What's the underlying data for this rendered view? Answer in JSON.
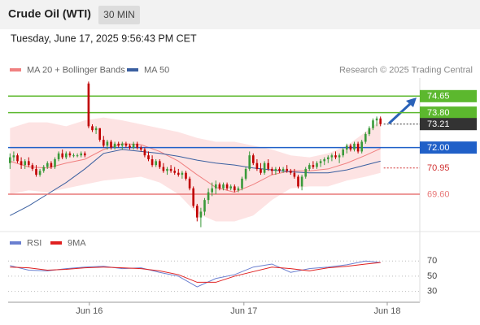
{
  "header": {
    "title": "Crude Oil (WTI)",
    "timeframe": "30 MIN",
    "timestamp": "Tuesday, June 17, 2025 9:56:43 PM CET"
  },
  "chart_data": [
    {
      "type": "candlestick",
      "source": "Research © 2025 Trading Central",
      "up_color": "#3a9a3a",
      "down_color": "#c00000",
      "xlim": [
        -0.5,
        109.5
      ],
      "ylim": [
        67.8,
        75.5
      ],
      "xticks": [
        {
          "value": 21.2,
          "label": "Jun 16"
        },
        {
          "value": 62.5,
          "label": "Jun 17"
        },
        {
          "value": 100.8,
          "label": "Jun 18"
        }
      ],
      "ohlc": [
        [
          71.2,
          71.7,
          70.9,
          71.5
        ],
        [
          71.5,
          71.8,
          71.3,
          71.6
        ],
        [
          71.6,
          71.7,
          71.2,
          71.3
        ],
        [
          71.3,
          71.5,
          70.9,
          71.1
        ],
        [
          71.1,
          71.4,
          70.9,
          71.3
        ],
        [
          71.3,
          71.5,
          71.0,
          71.1
        ],
        [
          71.1,
          71.2,
          70.8,
          70.9
        ],
        [
          70.9,
          71.1,
          70.5,
          70.6
        ],
        [
          70.6,
          70.9,
          70.5,
          70.8
        ],
        [
          70.8,
          71.1,
          70.7,
          71.0
        ],
        [
          71.0,
          71.3,
          70.9,
          71.2
        ],
        [
          71.2,
          71.3,
          70.9,
          71.0
        ],
        [
          71.0,
          71.5,
          70.9,
          71.4
        ],
        [
          71.4,
          71.8,
          71.3,
          71.7
        ],
        [
          71.7,
          71.9,
          71.4,
          71.5
        ],
        [
          71.5,
          71.8,
          71.4,
          71.7
        ],
        [
          71.7,
          71.8,
          71.5,
          71.6
        ],
        [
          71.6,
          71.7,
          71.5,
          71.6
        ],
        [
          71.6,
          71.7,
          71.5,
          71.6
        ],
        [
          71.6,
          71.8,
          71.5,
          71.7
        ],
        [
          71.7,
          71.8,
          71.5,
          71.6
        ],
        [
          75.3,
          75.4,
          73.0,
          73.1
        ],
        [
          73.1,
          73.2,
          72.8,
          72.9
        ],
        [
          72.9,
          73.1,
          72.7,
          73.0
        ],
        [
          73.0,
          73.0,
          72.3,
          72.4
        ],
        [
          72.4,
          72.6,
          72.0,
          72.1
        ],
        [
          72.1,
          72.4,
          71.9,
          72.3
        ],
        [
          72.3,
          72.4,
          71.9,
          72.0
        ],
        [
          72.0,
          72.3,
          71.9,
          72.2
        ],
        [
          72.2,
          72.3,
          72.0,
          72.1
        ],
        [
          72.1,
          72.3,
          71.9,
          72.2
        ],
        [
          72.2,
          72.3,
          72.0,
          72.1
        ],
        [
          72.1,
          72.2,
          71.9,
          72.0
        ],
        [
          72.0,
          72.3,
          71.9,
          72.2
        ],
        [
          72.2,
          72.3,
          71.9,
          72.0
        ],
        [
          72.0,
          72.1,
          71.8,
          71.9
        ],
        [
          71.9,
          72.0,
          71.5,
          71.6
        ],
        [
          71.6,
          71.8,
          71.3,
          71.4
        ],
        [
          71.4,
          71.6,
          71.0,
          71.1
        ],
        [
          71.1,
          71.4,
          71.0,
          71.3
        ],
        [
          71.3,
          71.4,
          70.9,
          71.0
        ],
        [
          71.0,
          71.2,
          70.7,
          70.8
        ],
        [
          70.8,
          71.0,
          70.6,
          70.9
        ],
        [
          70.9,
          71.1,
          70.7,
          70.8
        ],
        [
          70.8,
          71.0,
          70.6,
          70.7
        ],
        [
          70.7,
          70.9,
          70.5,
          70.6
        ],
        [
          70.6,
          70.8,
          70.4,
          70.7
        ],
        [
          70.7,
          70.8,
          70.3,
          70.4
        ],
        [
          70.4,
          70.5,
          69.8,
          69.9
        ],
        [
          69.9,
          70.0,
          68.9,
          69.0
        ],
        [
          69.0,
          69.1,
          68.2,
          68.4
        ],
        [
          68.4,
          68.9,
          67.9,
          68.7
        ],
        [
          68.7,
          69.4,
          68.5,
          69.3
        ],
        [
          69.3,
          69.9,
          69.1,
          69.7
        ],
        [
          69.7,
          70.2,
          69.5,
          69.9
        ],
        [
          69.9,
          70.3,
          69.6,
          70.1
        ],
        [
          70.1,
          70.2,
          69.8,
          69.9
        ],
        [
          69.9,
          70.2,
          69.8,
          70.1
        ],
        [
          70.1,
          70.2,
          69.8,
          69.9
        ],
        [
          69.9,
          70.1,
          69.8,
          70.0
        ],
        [
          70.0,
          70.1,
          69.7,
          69.8
        ],
        [
          69.8,
          70.0,
          69.7,
          69.9
        ],
        [
          69.9,
          70.5,
          69.8,
          70.4
        ],
        [
          70.4,
          71.0,
          70.3,
          70.9
        ],
        [
          70.9,
          71.8,
          70.8,
          71.6
        ],
        [
          71.6,
          71.7,
          71.1,
          71.2
        ],
        [
          71.2,
          71.4,
          70.8,
          70.9
        ],
        [
          70.9,
          71.2,
          70.6,
          70.7
        ],
        [
          70.7,
          71.3,
          70.6,
          71.2
        ],
        [
          71.2,
          71.4,
          70.8,
          70.9
        ],
        [
          70.9,
          71.0,
          70.6,
          70.8
        ],
        [
          70.8,
          71.0,
          70.6,
          70.9
        ],
        [
          70.9,
          71.0,
          70.7,
          70.8
        ],
        [
          70.8,
          71.0,
          70.7,
          70.9
        ],
        [
          70.9,
          71.1,
          70.7,
          70.8
        ],
        [
          70.8,
          70.9,
          70.6,
          70.7
        ],
        [
          70.7,
          70.9,
          70.4,
          70.5
        ],
        [
          70.5,
          70.6,
          69.9,
          70.0
        ],
        [
          70.0,
          70.6,
          69.8,
          70.5
        ],
        [
          70.5,
          71.0,
          70.4,
          70.9
        ],
        [
          70.9,
          71.2,
          70.8,
          71.1
        ],
        [
          71.1,
          71.3,
          70.9,
          71.0
        ],
        [
          71.0,
          71.3,
          70.9,
          71.2
        ],
        [
          71.2,
          71.4,
          71.0,
          71.3
        ],
        [
          71.3,
          71.5,
          71.1,
          71.4
        ],
        [
          71.4,
          71.6,
          71.2,
          71.5
        ],
        [
          71.5,
          71.7,
          71.3,
          71.6
        ],
        [
          71.6,
          71.8,
          71.4,
          71.5
        ],
        [
          71.5,
          71.7,
          71.2,
          71.6
        ],
        [
          71.6,
          72.0,
          71.5,
          71.9
        ],
        [
          71.9,
          72.2,
          71.7,
          72.1
        ],
        [
          72.1,
          72.2,
          71.8,
          71.9
        ],
        [
          71.9,
          72.3,
          71.8,
          72.2
        ],
        [
          72.2,
          72.3,
          71.7,
          71.8
        ],
        [
          71.8,
          72.4,
          71.7,
          72.3
        ],
        [
          72.3,
          72.8,
          72.2,
          72.7
        ],
        [
          72.7,
          73.1,
          72.6,
          73.0
        ],
        [
          73.0,
          73.5,
          72.9,
          73.4
        ],
        [
          73.4,
          73.6,
          73.1,
          73.5
        ],
        [
          73.5,
          73.6,
          73.1,
          73.21
        ]
      ],
      "line_x": [
        0,
        5,
        10,
        15,
        20,
        25,
        30,
        35,
        40,
        45,
        50,
        55,
        60,
        65,
        70,
        75,
        80,
        85,
        90,
        95,
        99
      ],
      "series": [
        {
          "name": "MA 20 + Bollinger Bands",
          "color": "#f08080",
          "band_color": "#fde3e3",
          "values": [
            71.3,
            71.0,
            70.95,
            71.2,
            71.4,
            71.9,
            72.2,
            72.15,
            71.8,
            71.3,
            70.6,
            69.95,
            69.7,
            70.1,
            70.6,
            70.8,
            70.8,
            70.9,
            71.2,
            71.6,
            71.95
          ],
          "upper": [
            73.0,
            73.3,
            73.3,
            73.1,
            73.4,
            73.55,
            73.4,
            73.2,
            73.0,
            72.8,
            72.5,
            72.3,
            72.3,
            72.1,
            71.9,
            71.6,
            71.5,
            71.7,
            72.1,
            72.8,
            73.4
          ],
          "lower": [
            69.6,
            69.8,
            69.7,
            69.9,
            70.1,
            70.3,
            70.4,
            70.5,
            70.2,
            69.6,
            68.6,
            68.2,
            68.2,
            68.5,
            69.3,
            69.9,
            70.0,
            70.0,
            70.3,
            70.5,
            70.7
          ]
        },
        {
          "name": "MA 50",
          "color": "#3a5fa0",
          "values": [
            68.5,
            69.0,
            69.6,
            70.2,
            70.9,
            71.7,
            71.9,
            71.8,
            71.7,
            71.55,
            71.35,
            71.2,
            71.1,
            70.95,
            70.85,
            70.75,
            70.7,
            70.7,
            70.85,
            71.1,
            71.3
          ]
        }
      ],
      "levels": [
        {
          "value": 74.65,
          "color": "#5cb82e",
          "line": "solid",
          "box": true
        },
        {
          "value": 73.8,
          "label": "73.80",
          "color": "#5cb82e",
          "line": "solid",
          "box": true
        },
        {
          "value": 73.21,
          "color": "#333333",
          "line": "dotted",
          "box": true
        },
        {
          "value": 72,
          "label": "72.00",
          "color": "#2060c8",
          "line": "solid",
          "box": true
        },
        {
          "value": 70.95,
          "color": "#d03030",
          "line": "dotted",
          "box": false
        },
        {
          "value": 69.6,
          "label": "69.60",
          "color": "#e87878",
          "line": "solid",
          "box": false
        }
      ]
    },
    {
      "type": "line",
      "xlim": [
        -0.5,
        109.5
      ],
      "ylim": [
        20,
        82
      ],
      "yticks": [
        70,
        50,
        30
      ],
      "x": [
        0,
        5,
        10,
        15,
        20,
        25,
        30,
        35,
        40,
        45,
        50,
        55,
        60,
        65,
        70,
        75,
        80,
        85,
        90,
        95,
        99
      ],
      "series": [
        {
          "name": "RSI",
          "color": "#6a7fd0",
          "values": [
            64,
            58,
            57,
            60,
            62,
            63,
            60,
            61,
            55,
            50,
            36,
            47,
            52,
            62,
            66,
            55,
            60,
            62,
            65,
            70,
            68
          ]
        },
        {
          "name": "9MA",
          "color": "#e02020",
          "values": [
            62,
            61,
            58,
            59,
            61,
            62,
            61,
            60,
            57,
            52,
            42,
            42,
            50,
            56,
            62,
            60,
            57,
            61,
            63,
            66,
            68
          ]
        }
      ]
    }
  ]
}
